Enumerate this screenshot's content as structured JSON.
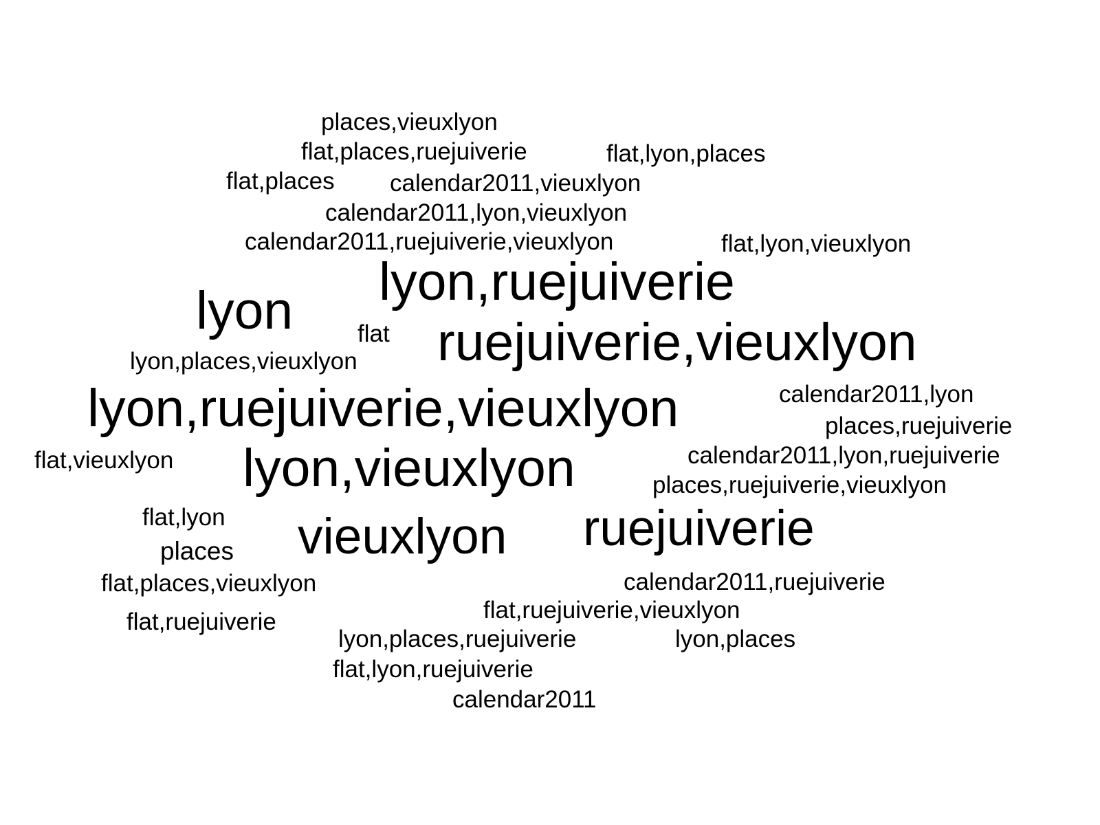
{
  "words": [
    "places,vieuxlyon",
    "flat,places,ruejuiverie",
    "flat,lyon,places",
    "flat,places",
    "calendar2011,vieuxlyon",
    "calendar2011,lyon,vieuxlyon",
    "calendar2011,ruejuiverie,vieuxlyon",
    "flat,lyon,vieuxlyon",
    "lyon,ruejuiverie",
    "lyon",
    "flat",
    "ruejuiverie,vieuxlyon",
    "lyon,places,vieuxlyon",
    "lyon,ruejuiverie,vieuxlyon",
    "calendar2011,lyon",
    "places,ruejuiverie",
    "flat,vieuxlyon",
    "lyon,vieuxlyon",
    "calendar2011,lyon,ruejuiverie",
    "places,ruejuiverie,vieuxlyon",
    "flat,lyon",
    "ruejuiverie",
    "vieuxlyon",
    "places",
    "calendar2011,ruejuiverie",
    "flat,places,vieuxlyon",
    "flat,ruejuiverie,vieuxlyon",
    "flat,ruejuiverie",
    "lyon,places,ruejuiverie",
    "lyon,places",
    "flat,lyon,ruejuiverie",
    "calendar2011"
  ],
  "colors": {
    "text": "#000000",
    "background": "#ffffff"
  }
}
